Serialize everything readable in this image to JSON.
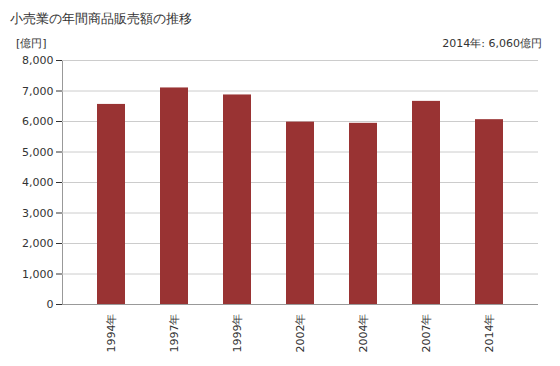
{
  "chart_data": {
    "type": "bar",
    "title": "小売業の年間商品販売額の推移",
    "y_label": "[億円]",
    "annotation": "2014年: 6,060億円",
    "categories": [
      "1994年",
      "1997年",
      "1999年",
      "2002年",
      "2004年",
      "2007年",
      "2014年"
    ],
    "values": [
      6560,
      7100,
      6870,
      5980,
      5940,
      6660,
      6060
    ],
    "color": "#993333",
    "ylim": [
      0,
      8000
    ],
    "yticks": [
      0,
      {
        "value": 1000,
        "label": "1,000"
      },
      {
        "value": 2000,
        "label": "2,000"
      },
      {
        "value": 3000,
        "label": "3,000"
      },
      {
        "value": 4000,
        "label": "4,000"
      },
      {
        "value": 5000,
        "label": "5,000"
      },
      {
        "value": 6000,
        "label": "6,000"
      },
      {
        "value": 7000,
        "label": "7,000"
      },
      {
        "value": 8000,
        "label": "8,000"
      }
    ],
    "grid": true
  }
}
